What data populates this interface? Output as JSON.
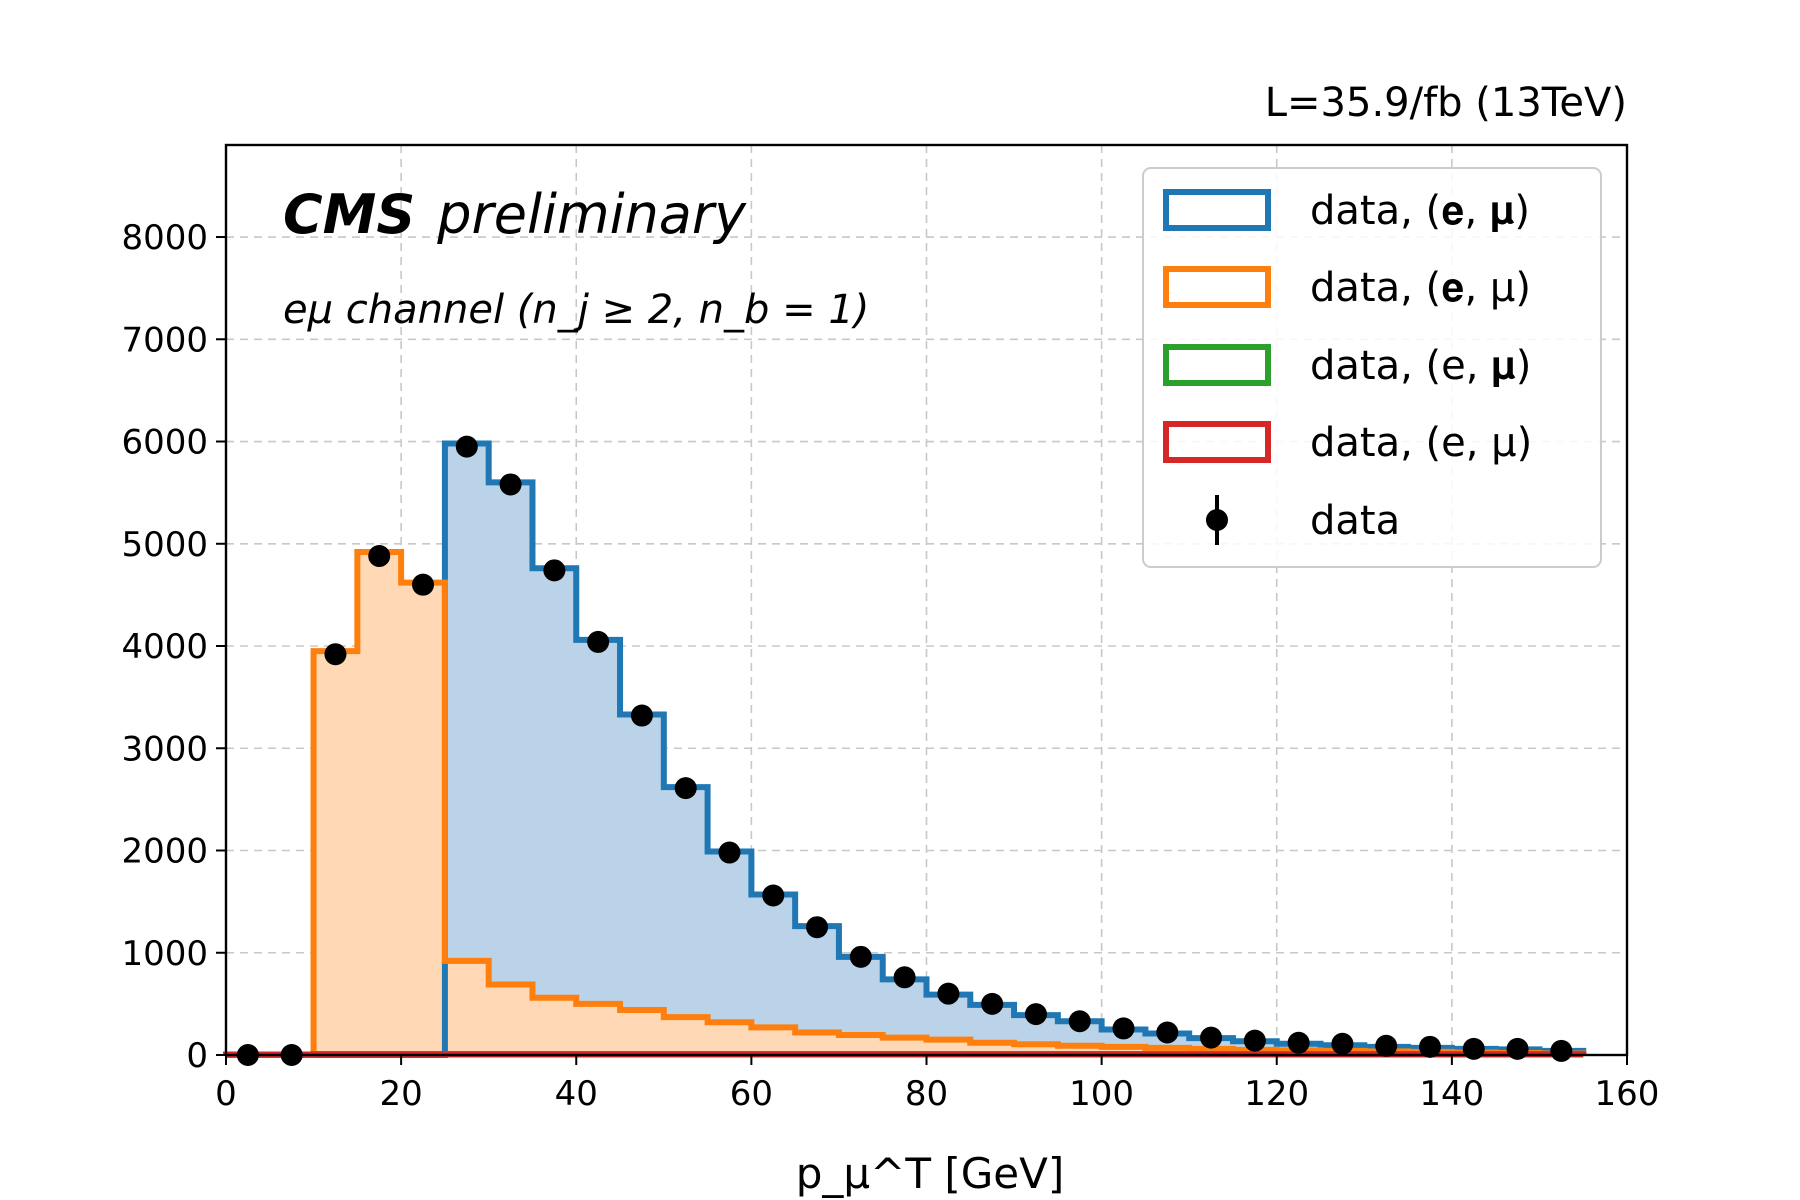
{
  "chart_data": {
    "type": "histogram",
    "lumi_label": "L=35.9/fb (13TeV)",
    "annotation_bold": "CMS",
    "annotation_italic": "preliminary",
    "channel_label": "eμ channel (n_j ≥ 2, n_b = 1)",
    "xlabel": "p_μ^T [GeV]",
    "ylabel": "",
    "xlim": [
      0,
      160
    ],
    "ylim": [
      0,
      8900
    ],
    "xticks": [
      0,
      20,
      40,
      60,
      80,
      100,
      120,
      140,
      160
    ],
    "yticks": [
      0,
      1000,
      2000,
      3000,
      4000,
      5000,
      6000,
      7000,
      8000
    ],
    "grid": true,
    "legend_placement": "top-right",
    "bin_edges": [
      0,
      5,
      10,
      15,
      20,
      25,
      30,
      35,
      40,
      45,
      50,
      55,
      60,
      65,
      70,
      75,
      80,
      85,
      90,
      95,
      100,
      105,
      110,
      115,
      120,
      125,
      130,
      135,
      140,
      145,
      150,
      155
    ],
    "series": [
      {
        "name": "data, (e, μ) blue",
        "legend_label": "data, (𝐞, 𝛍)",
        "color": "#1f77b4",
        "fill": "#bad3e8",
        "values": [
          0,
          0,
          0,
          0,
          0,
          5980,
          5600,
          4760,
          4060,
          3330,
          2620,
          1990,
          1570,
          1260,
          960,
          740,
          590,
          490,
          390,
          330,
          250,
          210,
          165,
          135,
          110,
          95,
          80,
          70,
          60,
          55,
          40
        ]
      },
      {
        "name": "data, (e, μ) orange",
        "legend_label": "data, (𝐞, μ)",
        "color": "#ff7f0e",
        "fill": "#ffd8b5",
        "values": [
          0,
          0,
          3950,
          4920,
          4620,
          920,
          690,
          560,
          500,
          440,
          370,
          320,
          270,
          220,
          195,
          170,
          150,
          120,
          105,
          90,
          80,
          70,
          60,
          50,
          45,
          40,
          35,
          30,
          25,
          20,
          15
        ]
      },
      {
        "name": "data, (e, μ) green",
        "legend_label": "data, (e, 𝛍)",
        "color": "#2ca02c",
        "fill": "none",
        "values": [
          0,
          0,
          10,
          10,
          10,
          10,
          10,
          10,
          10,
          10,
          10,
          10,
          10,
          10,
          10,
          10,
          10,
          10,
          10,
          10,
          10,
          10,
          10,
          10,
          10,
          10,
          10,
          10,
          10,
          10,
          10
        ]
      },
      {
        "name": "data, (e, μ) red",
        "legend_label": "data, (e, μ)",
        "color": "#d62728",
        "fill": "none",
        "values": [
          5,
          5,
          5,
          5,
          5,
          5,
          5,
          5,
          5,
          5,
          5,
          5,
          5,
          5,
          5,
          5,
          5,
          5,
          5,
          5,
          5,
          5,
          5,
          5,
          5,
          5,
          5,
          5,
          5,
          5,
          5
        ]
      }
    ],
    "data_points": {
      "name": "data",
      "legend_label": "data",
      "color": "#000000",
      "x": [
        2.5,
        7.5,
        12.5,
        17.5,
        22.5,
        27.5,
        32.5,
        37.5,
        42.5,
        47.5,
        52.5,
        57.5,
        62.5,
        67.5,
        72.5,
        77.5,
        82.5,
        87.5,
        92.5,
        97.5,
        102.5,
        107.5,
        112.5,
        117.5,
        122.5,
        127.5,
        132.5,
        137.5,
        142.5,
        147.5,
        152.5
      ],
      "y": [
        0,
        0,
        3920,
        4880,
        4600,
        5950,
        5580,
        4740,
        4040,
        3320,
        2610,
        1980,
        1560,
        1250,
        960,
        760,
        600,
        500,
        400,
        330,
        260,
        220,
        170,
        140,
        120,
        110,
        90,
        80,
        60,
        60,
        40
      ]
    }
  }
}
